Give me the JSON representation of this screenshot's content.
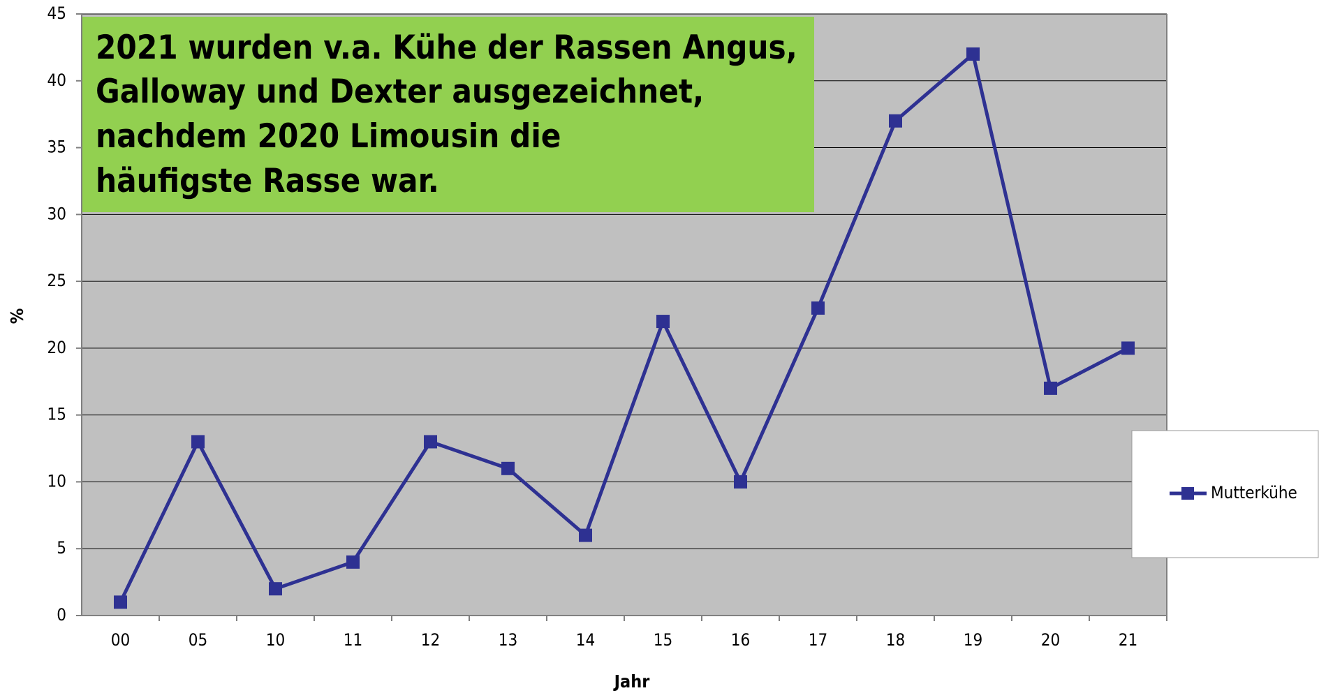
{
  "chart_data": {
    "type": "line",
    "annotation": [
      "2021 wurden v.a. Kühe der Rassen Angus,",
      "Galloway und Dexter ausgezeichnet,",
      "nachdem 2020 Limousin die",
      "häufigste Rasse war."
    ],
    "x_label": "Jahr",
    "y_label": "%",
    "categories": [
      "00",
      "05",
      "10",
      "11",
      "12",
      "13",
      "14",
      "15",
      "16",
      "17",
      "18",
      "19",
      "20",
      "21"
    ],
    "series": [
      {
        "name": "Mutterkühe",
        "color": "#2e3192",
        "values": [
          1,
          13,
          2,
          4,
          13,
          11,
          6,
          22,
          10,
          23,
          37,
          42,
          17,
          20
        ]
      }
    ],
    "ylim": [
      0,
      45
    ],
    "yticks": [
      0,
      5,
      10,
      15,
      20,
      25,
      30,
      35,
      40,
      45
    ],
    "grid": true,
    "legend": "right"
  }
}
